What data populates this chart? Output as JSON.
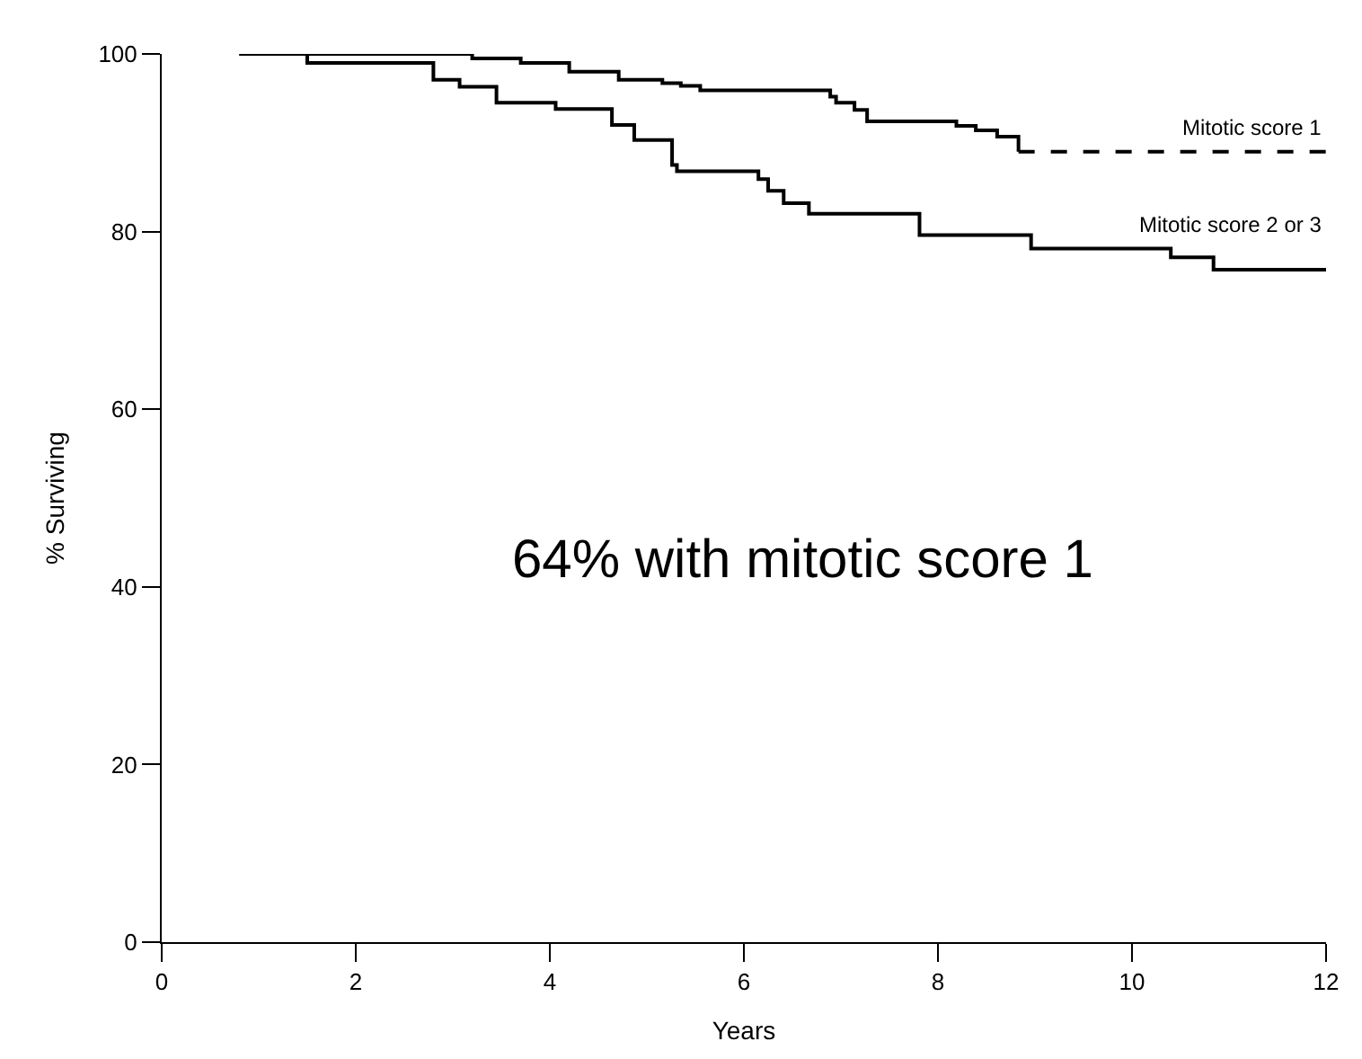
{
  "chart_data": {
    "type": "step",
    "xlabel": "Years",
    "ylabel": "% Surviving",
    "xlim": [
      0,
      12
    ],
    "ylim": [
      0,
      100
    ],
    "xticks": [
      0,
      2,
      4,
      6,
      8,
      10,
      12
    ],
    "yticks": [
      0,
      20,
      40,
      60,
      80,
      100
    ],
    "legend": false,
    "marker": "none",
    "series": [
      {
        "color": "#000000",
        "line_style": "solid",
        "x": [
          0.8,
          3.2,
          3.7,
          4.2,
          4.71,
          5.16,
          5.35,
          5.55,
          6.89,
          6.95,
          7.14,
          7.27,
          8.19,
          8.39,
          8.61,
          8.83
        ],
        "values": [
          100,
          99.5,
          99,
          98,
          97.1,
          96.7,
          96.4,
          95.9,
          95.2,
          94.5,
          93.7,
          92.4,
          91.9,
          91.4,
          90.7,
          89
        ]
      },
      {
        "name": "Mitotic score 1",
        "color": "#000000",
        "line_style": "dashed",
        "x": [
          8.83,
          12
        ],
        "values": [
          89,
          89
        ]
      },
      {
        "name": "Mitotic score 2 or 3",
        "color": "#000000",
        "line_style": "solid",
        "x": [
          0.8,
          1.5,
          2.8,
          3.07,
          3.45,
          4.06,
          4.64,
          4.87,
          5.26,
          5.31,
          6.15,
          6.25,
          6.41,
          6.67,
          7.81,
          8.96,
          10.4,
          10.84,
          12
        ],
        "values": [
          100,
          99,
          97.1,
          96.3,
          94.5,
          93.8,
          92,
          90.3,
          87.5,
          86.8,
          85.9,
          84.6,
          83.2,
          82,
          79.6,
          78.1,
          77.1,
          75.7,
          75.7
        ]
      }
    ],
    "annotations": [
      "64% with mitotic score 1"
    ]
  }
}
